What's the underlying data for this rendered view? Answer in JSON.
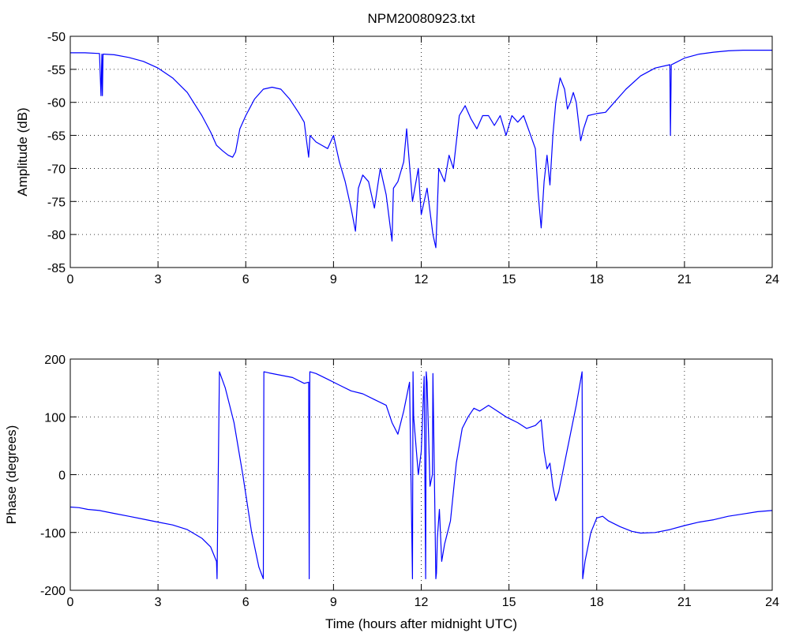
{
  "figure": {
    "title": "NPM20080923.txt"
  },
  "colors": {
    "trace": "#0000ff",
    "axes": "#000000",
    "grid": "#000000",
    "background": "#ffffff"
  },
  "chart_data": [
    {
      "type": "line",
      "title": "NPM20080923.txt",
      "xlabel": "",
      "ylabel": "Amplitude (dB)",
      "xlim": [
        0,
        24
      ],
      "ylim": [
        -85,
        -50
      ],
      "xticks": [
        0,
        3,
        6,
        9,
        12,
        15,
        18,
        21,
        24
      ],
      "yticks": [
        -85,
        -80,
        -75,
        -70,
        -65,
        -60,
        -55,
        -50
      ],
      "grid": true,
      "series": [
        {
          "name": "",
          "x": [
            0,
            0.5,
            1.0,
            1.05,
            1.08,
            1.1,
            1.12,
            1.15,
            1.5,
            2.0,
            2.5,
            3.0,
            3.5,
            4.0,
            4.5,
            4.8,
            5.0,
            5.2,
            5.4,
            5.55,
            5.65,
            5.8,
            6.0,
            6.3,
            6.6,
            6.9,
            7.2,
            7.5,
            7.8,
            8.0,
            8.15,
            8.2,
            8.4,
            8.6,
            8.8,
            9.0,
            9.2,
            9.4,
            9.6,
            9.75,
            9.85,
            10.0,
            10.2,
            10.4,
            10.6,
            10.8,
            11.0,
            11.05,
            11.2,
            11.4,
            11.5,
            11.7,
            11.9,
            12.0,
            12.2,
            12.4,
            12.5,
            12.6,
            12.8,
            12.95,
            13.1,
            13.3,
            13.5,
            13.7,
            13.9,
            14.1,
            14.3,
            14.5,
            14.7,
            14.9,
            15.1,
            15.3,
            15.5,
            15.7,
            15.9,
            16.0,
            16.1,
            16.2,
            16.3,
            16.4,
            16.5,
            16.6,
            16.75,
            16.9,
            17.0,
            17.1,
            17.2,
            17.3,
            17.45,
            17.55,
            17.7,
            17.9,
            18.0,
            18.3,
            18.6,
            19.0,
            19.5,
            20.0,
            20.5,
            20.52,
            20.55,
            20.6,
            21.0,
            21.5,
            22.0,
            22.5,
            23.0,
            23.5,
            24.0
          ],
          "values": [
            -52.5,
            -52.5,
            -52.6,
            -59,
            -52.7,
            -59,
            -52.7,
            -52.7,
            -52.8,
            -53.2,
            -53.8,
            -54.8,
            -56.3,
            -58.5,
            -62,
            -64.5,
            -66.5,
            -67.3,
            -68,
            -68.3,
            -67.5,
            -64,
            -62,
            -59.5,
            -58,
            -57.7,
            -58,
            -59.5,
            -61.5,
            -63,
            -68.3,
            -65,
            -66,
            -66.5,
            -67,
            -65,
            -69,
            -72,
            -76,
            -79.5,
            -73,
            -71,
            -72,
            -76,
            -70,
            -74,
            -81,
            -73,
            -72,
            -69,
            -64,
            -75,
            -70,
            -77,
            -73,
            -80,
            -82,
            -70,
            -72,
            -68,
            -70,
            -62,
            -60.5,
            -62.5,
            -64,
            -62,
            -62,
            -63.5,
            -62,
            -65,
            -62,
            -63,
            -62,
            -64.5,
            -67,
            -74,
            -79,
            -72,
            -68,
            -72.5,
            -65,
            -60,
            -56.3,
            -58,
            -61,
            -60,
            -58.5,
            -60,
            -65.8,
            -64,
            -62,
            -61.8,
            -61.7,
            -61.5,
            -60,
            -58,
            -56,
            -54.8,
            -54.3,
            -65,
            -54.3,
            -54.2,
            -53.3,
            -52.7,
            -52.4,
            -52.2,
            -52.1,
            -52.1,
            -52.1
          ]
        }
      ]
    },
    {
      "type": "line",
      "title": "",
      "xlabel": "Time (hours after midnight UTC)",
      "ylabel": "Phase (degrees)",
      "xlim": [
        0,
        24
      ],
      "ylim": [
        -200,
        200
      ],
      "xticks": [
        0,
        3,
        6,
        9,
        12,
        15,
        18,
        21,
        24
      ],
      "yticks": [
        -200,
        -100,
        0,
        100,
        200
      ],
      "grid": true,
      "series": [
        {
          "name": "",
          "x": [
            0,
            0.3,
            0.6,
            1.0,
            1.5,
            2.0,
            2.5,
            3.0,
            3.5,
            4.0,
            4.5,
            4.8,
            5.0,
            5.02,
            5.1,
            5.3,
            5.6,
            5.9,
            6.2,
            6.45,
            6.6,
            6.62,
            6.8,
            7.2,
            7.6,
            8.0,
            8.15,
            8.17,
            8.19,
            8.4,
            8.8,
            9.2,
            9.6,
            10.0,
            10.4,
            10.8,
            11.0,
            11.2,
            11.4,
            11.6,
            11.7,
            11.72,
            11.74,
            11.9,
            12.0,
            12.1,
            12.15,
            12.17,
            12.2,
            12.3,
            12.38,
            12.4,
            12.5,
            12.52,
            12.55,
            12.62,
            12.7,
            12.8,
            12.9,
            13.0,
            13.2,
            13.4,
            13.6,
            13.8,
            14.0,
            14.3,
            14.6,
            14.9,
            15.1,
            15.3,
            15.6,
            15.9,
            16.1,
            16.2,
            16.3,
            16.4,
            16.5,
            16.6,
            16.7,
            16.9,
            17.1,
            17.3,
            17.5,
            17.52,
            17.6,
            17.8,
            18.0,
            18.2,
            18.4,
            18.8,
            19.2,
            19.5,
            20.0,
            20.5,
            21.0,
            21.5,
            22.0,
            22.5,
            23.0,
            23.5,
            24.0
          ],
          "values": [
            -56,
            -57,
            -60,
            -62,
            -67,
            -72,
            -77,
            -82,
            -87,
            -95,
            -110,
            -125,
            -150,
            -180,
            178,
            150,
            90,
            0,
            -100,
            -160,
            -180,
            178,
            176,
            172,
            168,
            158,
            160,
            -180,
            178,
            175,
            165,
            155,
            145,
            140,
            130,
            120,
            90,
            70,
            110,
            160,
            -180,
            178,
            100,
            0,
            40,
            170,
            -180,
            178,
            160,
            -20,
            0,
            175,
            -180,
            -170,
            -110,
            -60,
            -150,
            -120,
            -100,
            -80,
            20,
            80,
            100,
            115,
            110,
            120,
            110,
            100,
            95,
            90,
            80,
            85,
            95,
            40,
            10,
            20,
            -20,
            -45,
            -30,
            20,
            70,
            120,
            178,
            -180,
            -150,
            -100,
            -75,
            -72,
            -80,
            -90,
            -98,
            -101,
            -100,
            -95,
            -88,
            -82,
            -78,
            -72,
            -68,
            -64,
            -62
          ]
        }
      ]
    }
  ]
}
